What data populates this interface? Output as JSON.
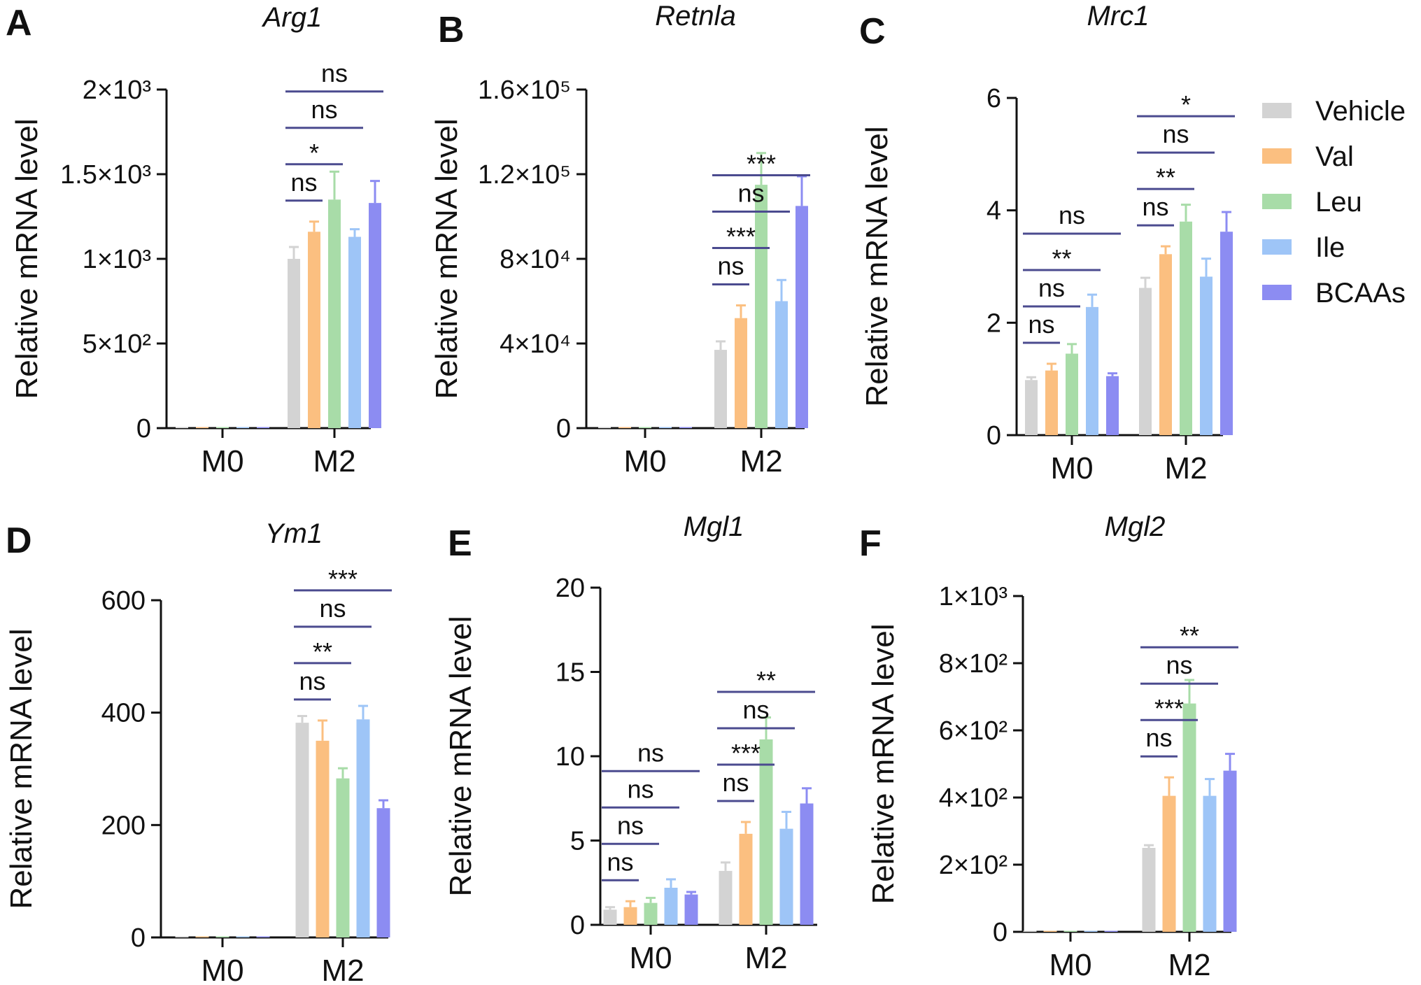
{
  "legend": {
    "groups": [
      {
        "name": "Vehicle",
        "color": "#d3d3d3"
      },
      {
        "name": "Val",
        "color": "#fbbf80"
      },
      {
        "name": "Leu",
        "color": "#a8dca8"
      },
      {
        "name": "Ile",
        "color": "#9ec5f7"
      },
      {
        "name": "BCAAs",
        "color": "#8c8cf2"
      }
    ]
  },
  "chart_data": [
    {
      "panel": "A",
      "type": "bar",
      "title": "Arg1",
      "xlabel": "",
      "ylabel": "Relative mRNA level",
      "ylim": [
        0,
        2000
      ],
      "yticks": [
        0,
        500,
        1000,
        1500,
        2000
      ],
      "ytick_labels": [
        "0",
        "5×10²",
        "1×10³",
        "1.5×10³",
        "2×10³"
      ],
      "categories": [
        "M0",
        "M2"
      ],
      "series": [
        {
          "name": "Vehicle",
          "values": [
            1,
            1000
          ],
          "errors": [
            0,
            70
          ]
        },
        {
          "name": "Val",
          "values": [
            1,
            1160
          ],
          "errors": [
            0,
            60
          ]
        },
        {
          "name": "Leu",
          "values": [
            1,
            1350
          ],
          "errors": [
            0,
            165
          ]
        },
        {
          "name": "Ile",
          "values": [
            1,
            1130
          ],
          "errors": [
            0,
            45
          ]
        },
        {
          "name": "BCAAs",
          "values": [
            1,
            1330
          ],
          "errors": [
            0,
            130
          ]
        }
      ],
      "significance": [
        {
          "category": "M2",
          "from": "Vehicle",
          "to": "Val",
          "label": "ns"
        },
        {
          "category": "M2",
          "from": "Vehicle",
          "to": "Leu",
          "label": "*"
        },
        {
          "category": "M2",
          "from": "Vehicle",
          "to": "Ile",
          "label": "ns"
        },
        {
          "category": "M2",
          "from": "Vehicle",
          "to": "BCAAs",
          "label": "ns"
        }
      ]
    },
    {
      "panel": "B",
      "type": "bar",
      "title": "Retnla",
      "xlabel": "",
      "ylabel": "Relative mRNA level",
      "ylim": [
        0,
        160000
      ],
      "yticks": [
        0,
        40000,
        80000,
        120000,
        160000
      ],
      "ytick_labels": [
        "0",
        "4×10⁴",
        "8×10⁴",
        "1.2×10⁵",
        "1.6×10⁵"
      ],
      "categories": [
        "M0",
        "M2"
      ],
      "series": [
        {
          "name": "Vehicle",
          "values": [
            1,
            37000
          ],
          "errors": [
            0,
            4000
          ]
        },
        {
          "name": "Val",
          "values": [
            1,
            52000
          ],
          "errors": [
            0,
            6000
          ]
        },
        {
          "name": "Leu",
          "values": [
            1,
            115000
          ],
          "errors": [
            0,
            15000
          ]
        },
        {
          "name": "Ile",
          "values": [
            1,
            60000
          ],
          "errors": [
            0,
            10000
          ]
        },
        {
          "name": "BCAAs",
          "values": [
            1,
            105000
          ],
          "errors": [
            0,
            14000
          ]
        }
      ],
      "significance": [
        {
          "category": "M2",
          "from": "Vehicle",
          "to": "Val",
          "label": "ns"
        },
        {
          "category": "M2",
          "from": "Vehicle",
          "to": "Leu",
          "label": "***"
        },
        {
          "category": "M2",
          "from": "Vehicle",
          "to": "Ile",
          "label": "ns"
        },
        {
          "category": "M2",
          "from": "Vehicle",
          "to": "BCAAs",
          "label": "***"
        }
      ]
    },
    {
      "panel": "C",
      "type": "bar",
      "title": "Mrc1",
      "xlabel": "",
      "ylabel": "Relative mRNA level",
      "ylim": [
        0,
        6
      ],
      "yticks": [
        0,
        2,
        4,
        6
      ],
      "ytick_labels": [
        "0",
        "2",
        "4",
        "6"
      ],
      "categories": [
        "M0",
        "M2"
      ],
      "series": [
        {
          "name": "Vehicle",
          "values": [
            0.98,
            2.62
          ],
          "errors": [
            0.05,
            0.18
          ]
        },
        {
          "name": "Val",
          "values": [
            1.15,
            3.22
          ],
          "errors": [
            0.12,
            0.14
          ]
        },
        {
          "name": "Leu",
          "values": [
            1.45,
            3.8
          ],
          "errors": [
            0.17,
            0.3
          ]
        },
        {
          "name": "Ile",
          "values": [
            2.28,
            2.82
          ],
          "errors": [
            0.22,
            0.32
          ]
        },
        {
          "name": "BCAAs",
          "values": [
            1.05,
            3.62
          ],
          "errors": [
            0.05,
            0.35
          ]
        }
      ],
      "significance": [
        {
          "category": "M0",
          "from": "Vehicle",
          "to": "Val",
          "label": "ns"
        },
        {
          "category": "M0",
          "from": "Vehicle",
          "to": "Leu",
          "label": "ns"
        },
        {
          "category": "M0",
          "from": "Vehicle",
          "to": "Ile",
          "label": "**"
        },
        {
          "category": "M0",
          "from": "Vehicle",
          "to": "BCAAs",
          "label": "ns"
        },
        {
          "category": "M2",
          "from": "Vehicle",
          "to": "Val",
          "label": "ns"
        },
        {
          "category": "M2",
          "from": "Vehicle",
          "to": "Leu",
          "label": "**"
        },
        {
          "category": "M2",
          "from": "Vehicle",
          "to": "Ile",
          "label": "ns"
        },
        {
          "category": "M2",
          "from": "Vehicle",
          "to": "BCAAs",
          "label": "*"
        }
      ]
    },
    {
      "panel": "D",
      "type": "bar",
      "title": "Ym1",
      "xlabel": "",
      "ylabel": "Relative mRNA level",
      "ylim": [
        0,
        600
      ],
      "yticks": [
        0,
        200,
        400,
        600
      ],
      "ytick_labels": [
        "0",
        "200",
        "400",
        "600"
      ],
      "categories": [
        "M0",
        "M2"
      ],
      "series": [
        {
          "name": "Vehicle",
          "values": [
            1,
            382
          ],
          "errors": [
            0,
            12
          ]
        },
        {
          "name": "Val",
          "values": [
            1,
            350
          ],
          "errors": [
            0,
            36
          ]
        },
        {
          "name": "Leu",
          "values": [
            1,
            283
          ],
          "errors": [
            0,
            18
          ]
        },
        {
          "name": "Ile",
          "values": [
            1,
            388
          ],
          "errors": [
            0,
            24
          ]
        },
        {
          "name": "BCAAs",
          "values": [
            1,
            230
          ],
          "errors": [
            0,
            14
          ]
        }
      ],
      "significance": [
        {
          "category": "M2",
          "from": "Vehicle",
          "to": "Val",
          "label": "ns"
        },
        {
          "category": "M2",
          "from": "Vehicle",
          "to": "Leu",
          "label": "**"
        },
        {
          "category": "M2",
          "from": "Vehicle",
          "to": "Ile",
          "label": "ns"
        },
        {
          "category": "M2",
          "from": "Vehicle",
          "to": "BCAAs",
          "label": "***"
        }
      ]
    },
    {
      "panel": "E",
      "type": "bar",
      "title": "Mgl1",
      "xlabel": "",
      "ylabel": "Relative mRNA level",
      "ylim": [
        0,
        20
      ],
      "yticks": [
        0,
        5,
        10,
        15,
        20
      ],
      "ytick_labels": [
        "0",
        "5",
        "10",
        "15",
        "20"
      ],
      "categories": [
        "M0",
        "M2"
      ],
      "series": [
        {
          "name": "Vehicle",
          "values": [
            0.9,
            3.2
          ],
          "errors": [
            0.15,
            0.5
          ]
        },
        {
          "name": "Val",
          "values": [
            1.05,
            5.4
          ],
          "errors": [
            0.35,
            0.7
          ]
        },
        {
          "name": "Leu",
          "values": [
            1.3,
            11.0
          ],
          "errors": [
            0.3,
            1.3
          ]
        },
        {
          "name": "Ile",
          "values": [
            2.2,
            5.7
          ],
          "errors": [
            0.5,
            1.0
          ]
        },
        {
          "name": "BCAAs",
          "values": [
            1.8,
            7.2
          ],
          "errors": [
            0.15,
            0.9
          ]
        }
      ],
      "significance": [
        {
          "category": "M0",
          "from": "Vehicle",
          "to": "Val",
          "label": "ns"
        },
        {
          "category": "M0",
          "from": "Vehicle",
          "to": "Leu",
          "label": "ns"
        },
        {
          "category": "M0",
          "from": "Vehicle",
          "to": "Ile",
          "label": "ns"
        },
        {
          "category": "M0",
          "from": "Vehicle",
          "to": "BCAAs",
          "label": "ns"
        },
        {
          "category": "M2",
          "from": "Vehicle",
          "to": "Val",
          "label": "ns"
        },
        {
          "category": "M2",
          "from": "Vehicle",
          "to": "Leu",
          "label": "***"
        },
        {
          "category": "M2",
          "from": "Vehicle",
          "to": "Ile",
          "label": "ns"
        },
        {
          "category": "M2",
          "from": "Vehicle",
          "to": "BCAAs",
          "label": "**"
        }
      ]
    },
    {
      "panel": "F",
      "type": "bar",
      "title": "Mgl2",
      "xlabel": "",
      "ylabel": "Relative mRNA level",
      "ylim": [
        0,
        1000
      ],
      "yticks": [
        0,
        200,
        400,
        600,
        800,
        1000
      ],
      "ytick_labels": [
        "0",
        "2×10²",
        "4×10²",
        "6×10²",
        "8×10²",
        "1×10³"
      ],
      "categories": [
        "M0",
        "M2"
      ],
      "series": [
        {
          "name": "Vehicle",
          "values": [
            1,
            250
          ],
          "errors": [
            0,
            8
          ]
        },
        {
          "name": "Val",
          "values": [
            1,
            405
          ],
          "errors": [
            0,
            55
          ]
        },
        {
          "name": "Leu",
          "values": [
            1,
            680
          ],
          "errors": [
            0,
            70
          ]
        },
        {
          "name": "Ile",
          "values": [
            1,
            405
          ],
          "errors": [
            0,
            50
          ]
        },
        {
          "name": "BCAAs",
          "values": [
            1,
            480
          ],
          "errors": [
            0,
            50
          ]
        }
      ],
      "significance": [
        {
          "category": "M2",
          "from": "Vehicle",
          "to": "Val",
          "label": "ns"
        },
        {
          "category": "M2",
          "from": "Vehicle",
          "to": "Leu",
          "label": "***"
        },
        {
          "category": "M2",
          "from": "Vehicle",
          "to": "Ile",
          "label": "ns"
        },
        {
          "category": "M2",
          "from": "Vehicle",
          "to": "BCAAs",
          "label": "**"
        }
      ]
    }
  ]
}
